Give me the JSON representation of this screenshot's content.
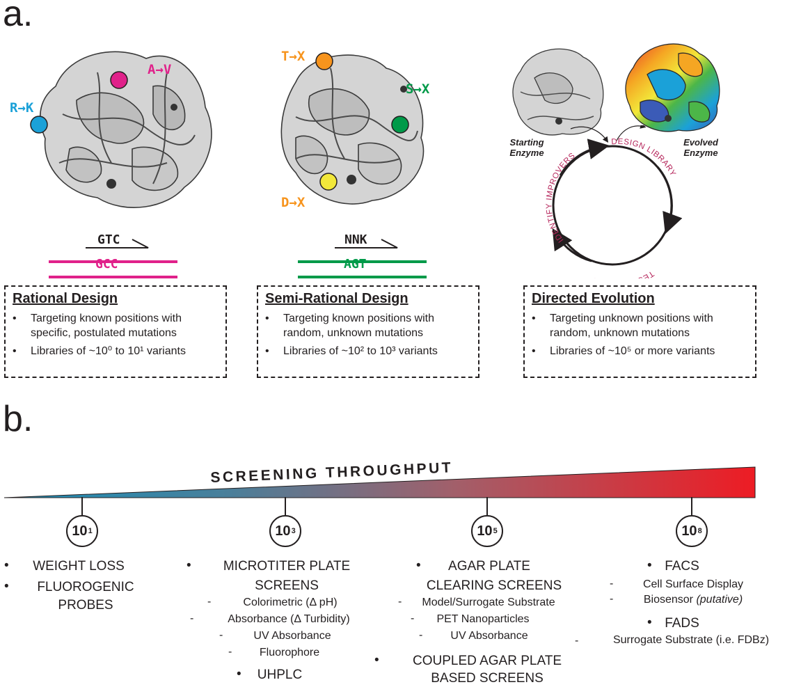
{
  "panel_a": {
    "letter": "a.",
    "rational": {
      "mutations": [
        {
          "text": "A→V",
          "color": "#e0218a"
        },
        {
          "text": "R→K",
          "color": "#1ba1d8"
        }
      ],
      "primer_codon": "GTC",
      "template_codon": "GCC",
      "strand_color": "#e0218a",
      "box_title": "Rational Design",
      "bullets": [
        "Targeting known positions with",
        "specific, postulated mutations",
        "Libraries of ~10⁰ to 10¹ variants"
      ]
    },
    "semi_rational": {
      "mutations": [
        {
          "text": "T→X",
          "color": "#f7941d"
        },
        {
          "text": "S→X",
          "color": "#009a49"
        },
        {
          "text": "D→X",
          "color": "#f7941d"
        }
      ],
      "primer_codon": "NNK",
      "template_codon": "AGT",
      "strand_color": "#009a49",
      "box_title": "Semi-Rational Design",
      "bullets": [
        "Targeting known positions with",
        "random, unknown mutations",
        "Libraries of ~10² to 10³ variants"
      ]
    },
    "directed_evolution": {
      "starting_label": [
        "Starting",
        "Enzyme"
      ],
      "evolved_label": [
        "Evolved",
        "Enzyme"
      ],
      "cycle_steps": [
        "DESIGN LIBRARY",
        "TEST/SCREEN",
        "IDENTIFY IMPROVERS"
      ],
      "box_title": "Directed Evolution",
      "bullets": [
        "Targeting unknown positions with",
        "random, unknown mutations",
        "Libraries of ~10⁵ or more variants"
      ]
    }
  },
  "panel_b": {
    "letter": "b.",
    "title": "SCREENING THROUGHPUT",
    "gradient": {
      "start": "#1b8fb8",
      "end": "#ed1c24"
    },
    "ticks": [
      {
        "base": "10",
        "exp": "1"
      },
      {
        "base": "10",
        "exp": "3"
      },
      {
        "base": "10",
        "exp": "5"
      },
      {
        "base": "10",
        "exp": "8"
      }
    ],
    "col1": {
      "weight_loss": "WEIGHT LOSS",
      "fluoro_1": "FLUOROGENIC",
      "fluoro_2": "PROBES"
    },
    "col2": {
      "micro_1": "MICROTITER PLATE",
      "micro_2": "SCREENS",
      "subs": [
        "Colorimetric (Δ pH)",
        "Absorbance (Δ Turbidity)",
        "UV Absorbance",
        "Fluorophore"
      ],
      "uhplc": "UHPLC"
    },
    "col3": {
      "agar_1": "AGAR PLATE",
      "agar_2": "CLEARING SCREENS",
      "subs": [
        "Model/Surrogate Substrate",
        "PET Nanoparticles",
        "UV Absorbance"
      ],
      "coupled_1": "COUPLED AGAR PLATE",
      "coupled_2": "BASED SCREENS"
    },
    "col4": {
      "facs": "FACS",
      "facs_subs": [
        "Cell Surface Display",
        "Biosensor"
      ],
      "putative": "(putative)",
      "fads": "FADS",
      "fads_sub": "Surrogate Substrate (i.e. FDBz)"
    }
  }
}
